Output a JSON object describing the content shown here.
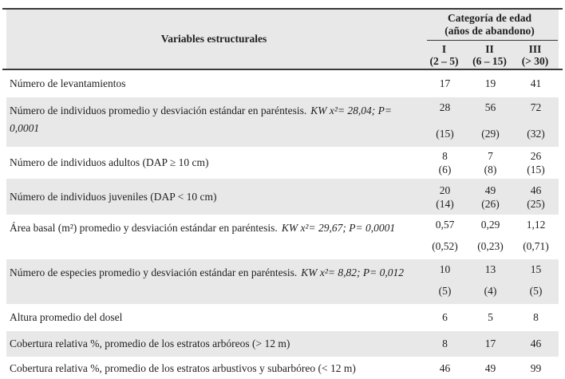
{
  "header": {
    "col1": "Variables estructurales",
    "group_line1": "Categoría de edad",
    "group_line2": "(años de abandono)",
    "subcols": [
      {
        "numeral": "I",
        "range": "(2 – 5)"
      },
      {
        "numeral": "II",
        "range": "(6 – 15)"
      },
      {
        "numeral": "III",
        "range": "(> 30)"
      }
    ]
  },
  "rows": [
    {
      "label": "Número de levantamientos",
      "stat": "",
      "values": [
        "17",
        "19",
        "41"
      ],
      "devs": [
        "",
        "",
        ""
      ]
    },
    {
      "label": "Número de individuos promedio y desviación estándar en paréntesis.",
      "stat": "KW x²= 28,04; P= 0,0001",
      "values": [
        "28",
        "56",
        "72"
      ],
      "devs": [
        "(15)",
        "(29)",
        "(32)"
      ]
    },
    {
      "label": "Número de individuos adultos (DAP ≥ 10 cm)",
      "stat": "",
      "values": [
        "8",
        "7",
        "26"
      ],
      "devs": [
        "(6)",
        "(8)",
        "(15)"
      ]
    },
    {
      "label": "Número de individuos juveniles (DAP < 10 cm)",
      "stat": "",
      "values": [
        "20",
        "49",
        "46"
      ],
      "devs": [
        "(14)",
        "(26)",
        "(25)"
      ]
    },
    {
      "label": "Área basal (m²) promedio y desviación estándar en paréntesis.",
      "stat": "KW x²= 29,67; P= 0,0001",
      "values": [
        "0,57",
        "0,29",
        "1,12"
      ],
      "devs": [
        "(0,52)",
        "(0,23)",
        "(0,71)"
      ]
    },
    {
      "label": "Número de especies promedio y desviación estándar en paréntesis.",
      "stat": "KW x²= 8,82; P= 0,012",
      "values": [
        "10",
        "13",
        "15"
      ],
      "devs": [
        "(5)",
        "(4)",
        "(5)"
      ]
    },
    {
      "label": "Altura promedio del dosel",
      "stat": "",
      "values": [
        "6",
        "5",
        "8"
      ],
      "devs": [
        "",
        "",
        ""
      ]
    },
    {
      "label": "Cobertura relativa %, promedio de los estratos arbóreos (> 12 m)",
      "stat": "",
      "values": [
        "8",
        "17",
        "46"
      ],
      "devs": [
        "",
        "",
        ""
      ]
    },
    {
      "label": "Cobertura relativa %, promedio de los estratos arbustivos y subarbóreo (< 12 m)",
      "stat": "",
      "values": [
        "46",
        "49",
        "99"
      ],
      "devs": [
        "",
        "",
        ""
      ]
    }
  ],
  "colors": {
    "shaded_row": "#e8e8e8",
    "rule": "#3a3a3a",
    "text": "#1f1f1f"
  },
  "chart_data": {
    "type": "table",
    "columns": [
      "Variables estructurales",
      "I (2 – 5)",
      "II (6 – 15)",
      "III (> 30)"
    ],
    "rows": [
      [
        "Número de levantamientos",
        "17",
        "19",
        "41"
      ],
      [
        "Número de individuos promedio y desviación estándar en paréntesis. KW x²= 28,04; P= 0,0001",
        "28 (15)",
        "56 (29)",
        "72 (32)"
      ],
      [
        "Número de individuos adultos (DAP ≥ 10 cm)",
        "8 (6)",
        "7 (8)",
        "26 (15)"
      ],
      [
        "Número de individuos juveniles (DAP < 10 cm)",
        "20 (14)",
        "49 (26)",
        "46 (25)"
      ],
      [
        "Área basal (m²) promedio y desviación estándar en paréntesis. KW x²= 29,67; P= 0,0001",
        "0,57 (0,52)",
        "0,29 (0,23)",
        "1,12 (0,71)"
      ],
      [
        "Número de especies promedio y desviación estándar en paréntesis. KW x²= 8,82; P= 0,012",
        "10 (5)",
        "13 (4)",
        "15 (5)"
      ],
      [
        "Altura promedio del dosel",
        "6",
        "5",
        "8"
      ],
      [
        "Cobertura relativa %, promedio de los estratos arbóreos (> 12 m)",
        "8",
        "17",
        "46"
      ],
      [
        "Cobertura relativa %, promedio de los estratos arbustivos y subarbóreo (< 12 m)",
        "46",
        "49",
        "99"
      ]
    ]
  }
}
